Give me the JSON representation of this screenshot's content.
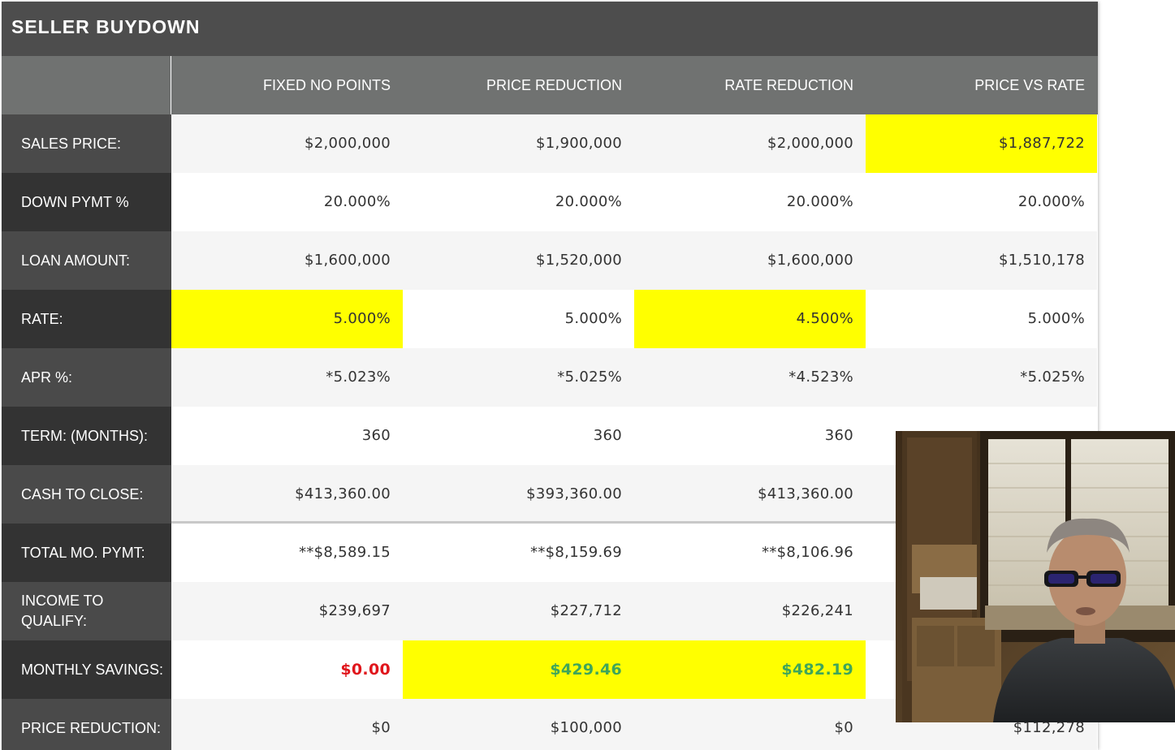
{
  "title": "SELLER BUYDOWN",
  "columns": [
    "FIXED NO POINTS",
    "PRICE REDUCTION",
    "RATE REDUCTION",
    "PRICE VS RATE"
  ],
  "rows": [
    {
      "label": "SALES PRICE:",
      "values": [
        "$2,000,000",
        "$1,900,000",
        "$2,000,000",
        "$1,887,722"
      ]
    },
    {
      "label": "DOWN PYMT %",
      "values": [
        "20.000%",
        "20.000%",
        "20.000%",
        "20.000%"
      ]
    },
    {
      "label": "LOAN AMOUNT:",
      "values": [
        "$1,600,000",
        "$1,520,000",
        "$1,600,000",
        "$1,510,178"
      ]
    },
    {
      "label": "RATE:",
      "values": [
        "5.000%",
        "5.000%",
        "4.500%",
        "5.000%"
      ]
    },
    {
      "label": "APR %:",
      "values": [
        "*5.023%",
        "*5.025%",
        "*4.523%",
        "*5.025%"
      ]
    },
    {
      "label": "TERM: (MONTHS):",
      "values": [
        "360",
        "360",
        "360",
        ""
      ]
    },
    {
      "label": "CASH TO CLOSE:",
      "values": [
        "$413,360.00",
        "$393,360.00",
        "$413,360.00",
        ""
      ]
    },
    {
      "label": "TOTAL MO. PYMT:",
      "values": [
        "**$8,589.15",
        "**$8,159.69",
        "**$8,106.96",
        ""
      ]
    },
    {
      "label": "INCOME TO QUALIFY:",
      "values": [
        "$239,697",
        "$227,712",
        "$226,241",
        ""
      ]
    },
    {
      "label": "MONTHLY SAVINGS:",
      "values": [
        "$0.00",
        "$429.46",
        "$482.19",
        ""
      ]
    },
    {
      "label": "PRICE REDUCTION:",
      "values": [
        "$0",
        "$100,000",
        "$0",
        "$112,278"
      ]
    }
  ],
  "colors": {
    "highlight": "#ffff00",
    "savings_zero": "#e0161c",
    "savings_positive": "#3fa65a"
  }
}
